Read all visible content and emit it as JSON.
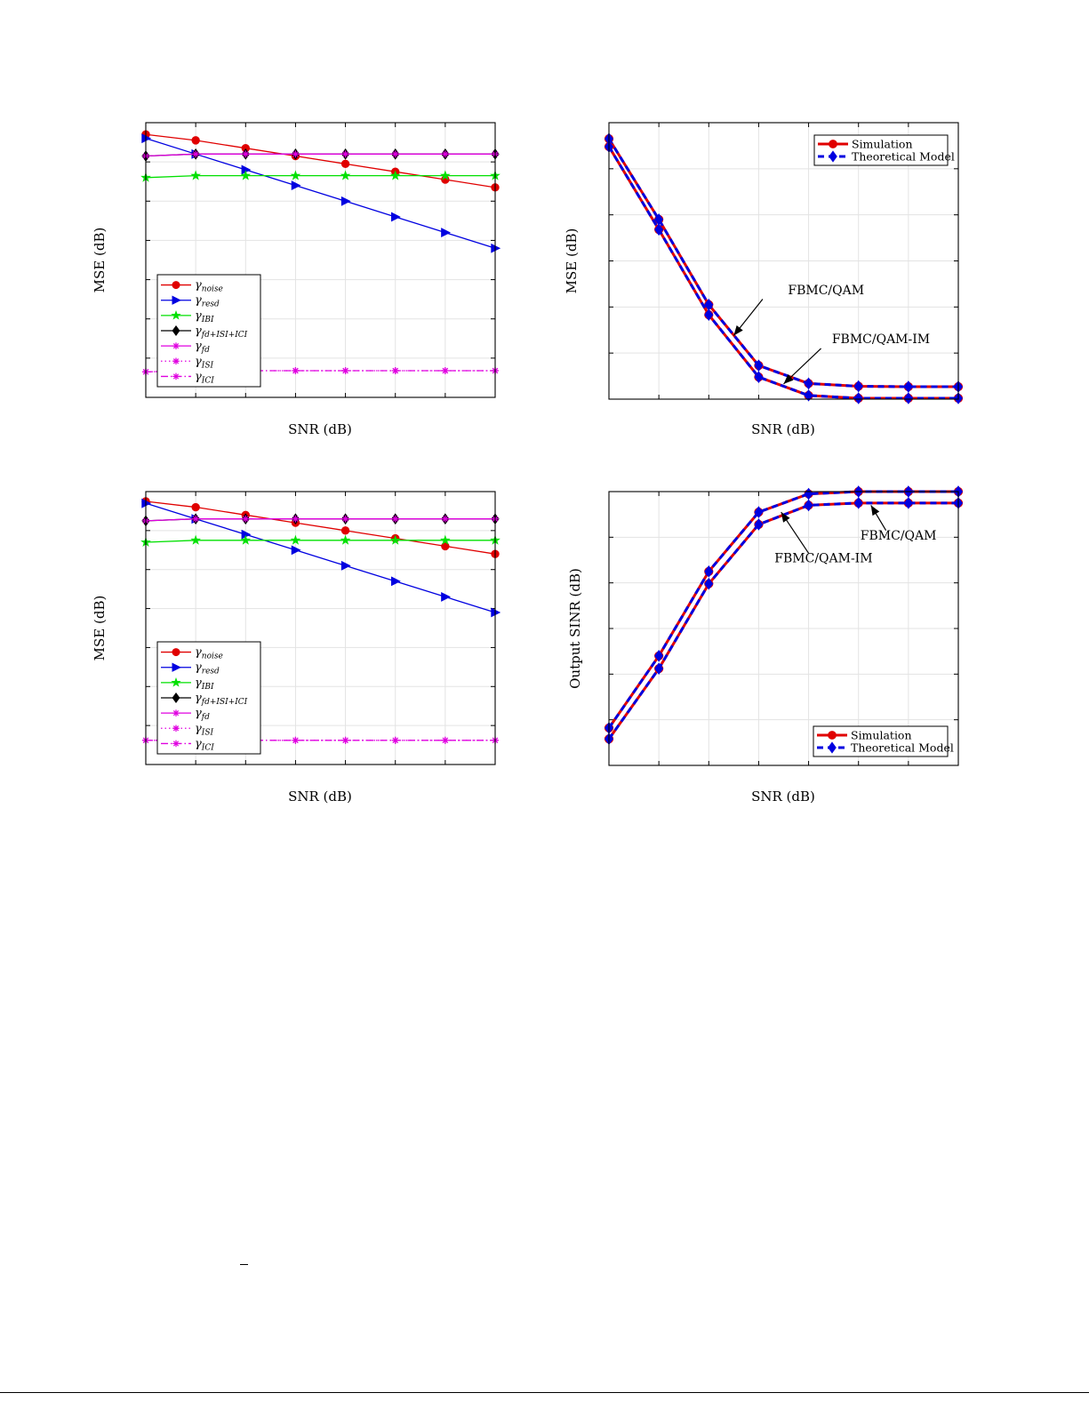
{
  "chart_data": [
    {
      "id": "a",
      "type": "line",
      "xlabel": "SNR (dB)",
      "ylabel": "MSE (dB)",
      "x": [
        0,
        1,
        2,
        3,
        4,
        5,
        6,
        7
      ],
      "xlim": [
        0,
        7
      ],
      "ylim": [
        0,
        7
      ],
      "grid": true,
      "legend_position": "bottom-left",
      "series": [
        {
          "name": "γnoise",
          "base": "γ",
          "sub": "noise",
          "color": "#e00000",
          "dash": "",
          "marker": "circle",
          "values": [
            6.7,
            6.55,
            6.35,
            6.15,
            5.95,
            5.75,
            5.55,
            5.35
          ]
        },
        {
          "name": "γresd",
          "base": "γ",
          "sub": "resd",
          "color": "#0000e0",
          "dash": "",
          "marker": "triangle-right",
          "values": [
            6.6,
            6.2,
            5.8,
            5.4,
            5.0,
            4.6,
            4.2,
            3.8
          ]
        },
        {
          "name": "γIBI",
          "base": "γ",
          "sub": "IBI",
          "color": "#00e000",
          "dash": "",
          "marker": "star",
          "values": [
            5.6,
            5.65,
            5.65,
            5.65,
            5.65,
            5.65,
            5.65,
            5.65
          ]
        },
        {
          "name": "γfd+ISI+ICI",
          "base": "γ",
          "sub": "fd+ISI+ICI",
          "color": "#000000",
          "dash": "",
          "marker": "diamond",
          "values": [
            6.15,
            6.2,
            6.2,
            6.2,
            6.2,
            6.2,
            6.2,
            6.2
          ]
        },
        {
          "name": "γfd",
          "base": "γ",
          "sub": "fd",
          "color": "#e000e0",
          "dash": "",
          "marker": "asterisk",
          "values": [
            6.15,
            6.2,
            6.2,
            6.2,
            6.2,
            6.2,
            6.2,
            6.2
          ]
        },
        {
          "name": "γISI",
          "base": "γ",
          "sub": "ISI",
          "color": "#e000e0",
          "dash": "1.5,3",
          "marker": "asterisk",
          "values": [
            0.65,
            0.68,
            0.68,
            0.68,
            0.68,
            0.68,
            0.68,
            0.68
          ]
        },
        {
          "name": "γICI",
          "base": "γ",
          "sub": "ICI",
          "color": "#e000e0",
          "dash": "8,3,1.5,3",
          "marker": "asterisk",
          "values": [
            0.65,
            0.68,
            0.68,
            0.68,
            0.68,
            0.68,
            0.68,
            0.68
          ]
        }
      ]
    },
    {
      "id": "b",
      "type": "line",
      "xlabel": "SNR (dB)",
      "ylabel": "MSE (dB)",
      "x": [
        0,
        1,
        2,
        3,
        4,
        5,
        6,
        7
      ],
      "xlim": [
        0,
        7
      ],
      "ylim": [
        0,
        6
      ],
      "grid": true,
      "legend_position": "top-right",
      "series": [
        {
          "name": "Simulation",
          "color": "#e00000",
          "dash": "",
          "marker": "circle",
          "width": 3,
          "values": [
            5.65,
            3.9,
            2.05,
            0.73,
            0.34,
            0.28,
            0.27,
            0.27
          ]
        },
        {
          "name": "Theoretical Model",
          "color": "#0000e0",
          "dash": "7,5",
          "marker": "diamond",
          "width": 3,
          "values": [
            5.65,
            3.9,
            2.05,
            0.73,
            0.34,
            0.28,
            0.27,
            0.27
          ]
        },
        {
          "name": "",
          "color": "#e00000",
          "dash": "",
          "marker": "circle",
          "width": 3,
          "values": [
            5.48,
            3.68,
            1.83,
            0.48,
            0.08,
            0.02,
            0.02,
            0.02
          ]
        },
        {
          "name": "",
          "color": "#0000e0",
          "dash": "7,5",
          "marker": "diamond",
          "width": 3,
          "values": [
            5.48,
            3.68,
            1.83,
            0.48,
            0.08,
            0.02,
            0.02,
            0.02
          ]
        }
      ],
      "annotations": [
        {
          "text": "FBMC/QAM",
          "label_at": [
            4.35,
            2.28
          ],
          "arrow_from": [
            3.08,
            2.17
          ],
          "arrow_to": [
            2.5,
            1.38
          ]
        },
        {
          "text": "FBMC/QAM-IM",
          "label_at": [
            5.45,
            1.22
          ],
          "arrow_from": [
            4.25,
            1.1
          ],
          "arrow_to": [
            3.5,
            0.33
          ]
        }
      ]
    },
    {
      "id": "c",
      "type": "line",
      "xlabel": "SNR (dB)",
      "ylabel": "MSE (dB)",
      "x": [
        0,
        1,
        2,
        3,
        4,
        5,
        6,
        7
      ],
      "xlim": [
        0,
        7
      ],
      "ylim": [
        0,
        7
      ],
      "grid": true,
      "legend_position": "bottom-left",
      "series": [
        {
          "name": "γnoise",
          "base": "γ",
          "sub": "noise",
          "color": "#e00000",
          "dash": "",
          "marker": "circle",
          "values": [
            6.75,
            6.6,
            6.4,
            6.2,
            6.0,
            5.8,
            5.6,
            5.4
          ]
        },
        {
          "name": "γresd",
          "base": "γ",
          "sub": "resd",
          "color": "#0000e0",
          "dash": "",
          "marker": "triangle-right",
          "values": [
            6.7,
            6.3,
            5.9,
            5.5,
            5.1,
            4.7,
            4.3,
            3.9
          ]
        },
        {
          "name": "γIBI",
          "base": "γ",
          "sub": "IBI",
          "color": "#00e000",
          "dash": "",
          "marker": "star",
          "values": [
            5.7,
            5.75,
            5.75,
            5.75,
            5.75,
            5.75,
            5.75,
            5.75
          ]
        },
        {
          "name": "γfd+ISI+ICI",
          "base": "γ",
          "sub": "fd+ISI+ICI",
          "color": "#000000",
          "dash": "",
          "marker": "diamond",
          "values": [
            6.25,
            6.3,
            6.3,
            6.3,
            6.3,
            6.3,
            6.3,
            6.3
          ]
        },
        {
          "name": "γfd",
          "base": "γ",
          "sub": "fd",
          "color": "#e000e0",
          "dash": "",
          "marker": "asterisk",
          "values": [
            6.25,
            6.3,
            6.3,
            6.3,
            6.3,
            6.3,
            6.3,
            6.3
          ]
        },
        {
          "name": "γISI",
          "base": "γ",
          "sub": "ISI",
          "color": "#e000e0",
          "dash": "1.5,3",
          "marker": "asterisk",
          "values": [
            0.62,
            0.62,
            0.62,
            0.62,
            0.62,
            0.62,
            0.62,
            0.62
          ]
        },
        {
          "name": "γICI",
          "base": "γ",
          "sub": "ICI",
          "color": "#e000e0",
          "dash": "8,3,1.5,3",
          "marker": "asterisk",
          "values": [
            0.62,
            0.62,
            0.62,
            0.62,
            0.62,
            0.62,
            0.62,
            0.62
          ]
        }
      ]
    },
    {
      "id": "d",
      "type": "line",
      "xlabel": "SNR (dB)",
      "ylabel": "Output SINR (dB)",
      "x": [
        0,
        1,
        2,
        3,
        4,
        5,
        6,
        7
      ],
      "xlim": [
        0,
        7
      ],
      "ylim": [
        0,
        6
      ],
      "grid": true,
      "legend_position": "bottom-right",
      "series": [
        {
          "name": "Simulation",
          "color": "#e00000",
          "dash": "",
          "marker": "circle",
          "width": 3,
          "values": [
            0.82,
            2.4,
            4.25,
            5.55,
            5.95,
            6.0,
            6.0,
            6.0
          ]
        },
        {
          "name": "Theoretical Model",
          "color": "#0000e0",
          "dash": "7,5",
          "marker": "diamond",
          "width": 3,
          "values": [
            0.82,
            2.4,
            4.25,
            5.55,
            5.95,
            6.0,
            6.0,
            6.0
          ]
        },
        {
          "name": "",
          "color": "#e00000",
          "dash": "",
          "marker": "circle",
          "width": 3,
          "values": [
            0.58,
            2.12,
            3.98,
            5.28,
            5.7,
            5.75,
            5.75,
            5.75
          ]
        },
        {
          "name": "",
          "color": "#0000e0",
          "dash": "7,5",
          "marker": "diamond",
          "width": 3,
          "values": [
            0.58,
            2.12,
            3.98,
            5.28,
            5.7,
            5.75,
            5.75,
            5.75
          ]
        }
      ],
      "annotations": [
        {
          "text": "FBMC/QAM",
          "label_at": [
            5.8,
            4.95
          ],
          "arrow_from": [
            5.55,
            5.15
          ],
          "arrow_to": [
            5.25,
            5.7
          ]
        },
        {
          "text": "FBMC/QAM-IM",
          "label_at": [
            4.3,
            4.45
          ],
          "arrow_from": [
            4.0,
            4.65
          ],
          "arrow_to": [
            3.45,
            5.55
          ]
        }
      ]
    }
  ]
}
